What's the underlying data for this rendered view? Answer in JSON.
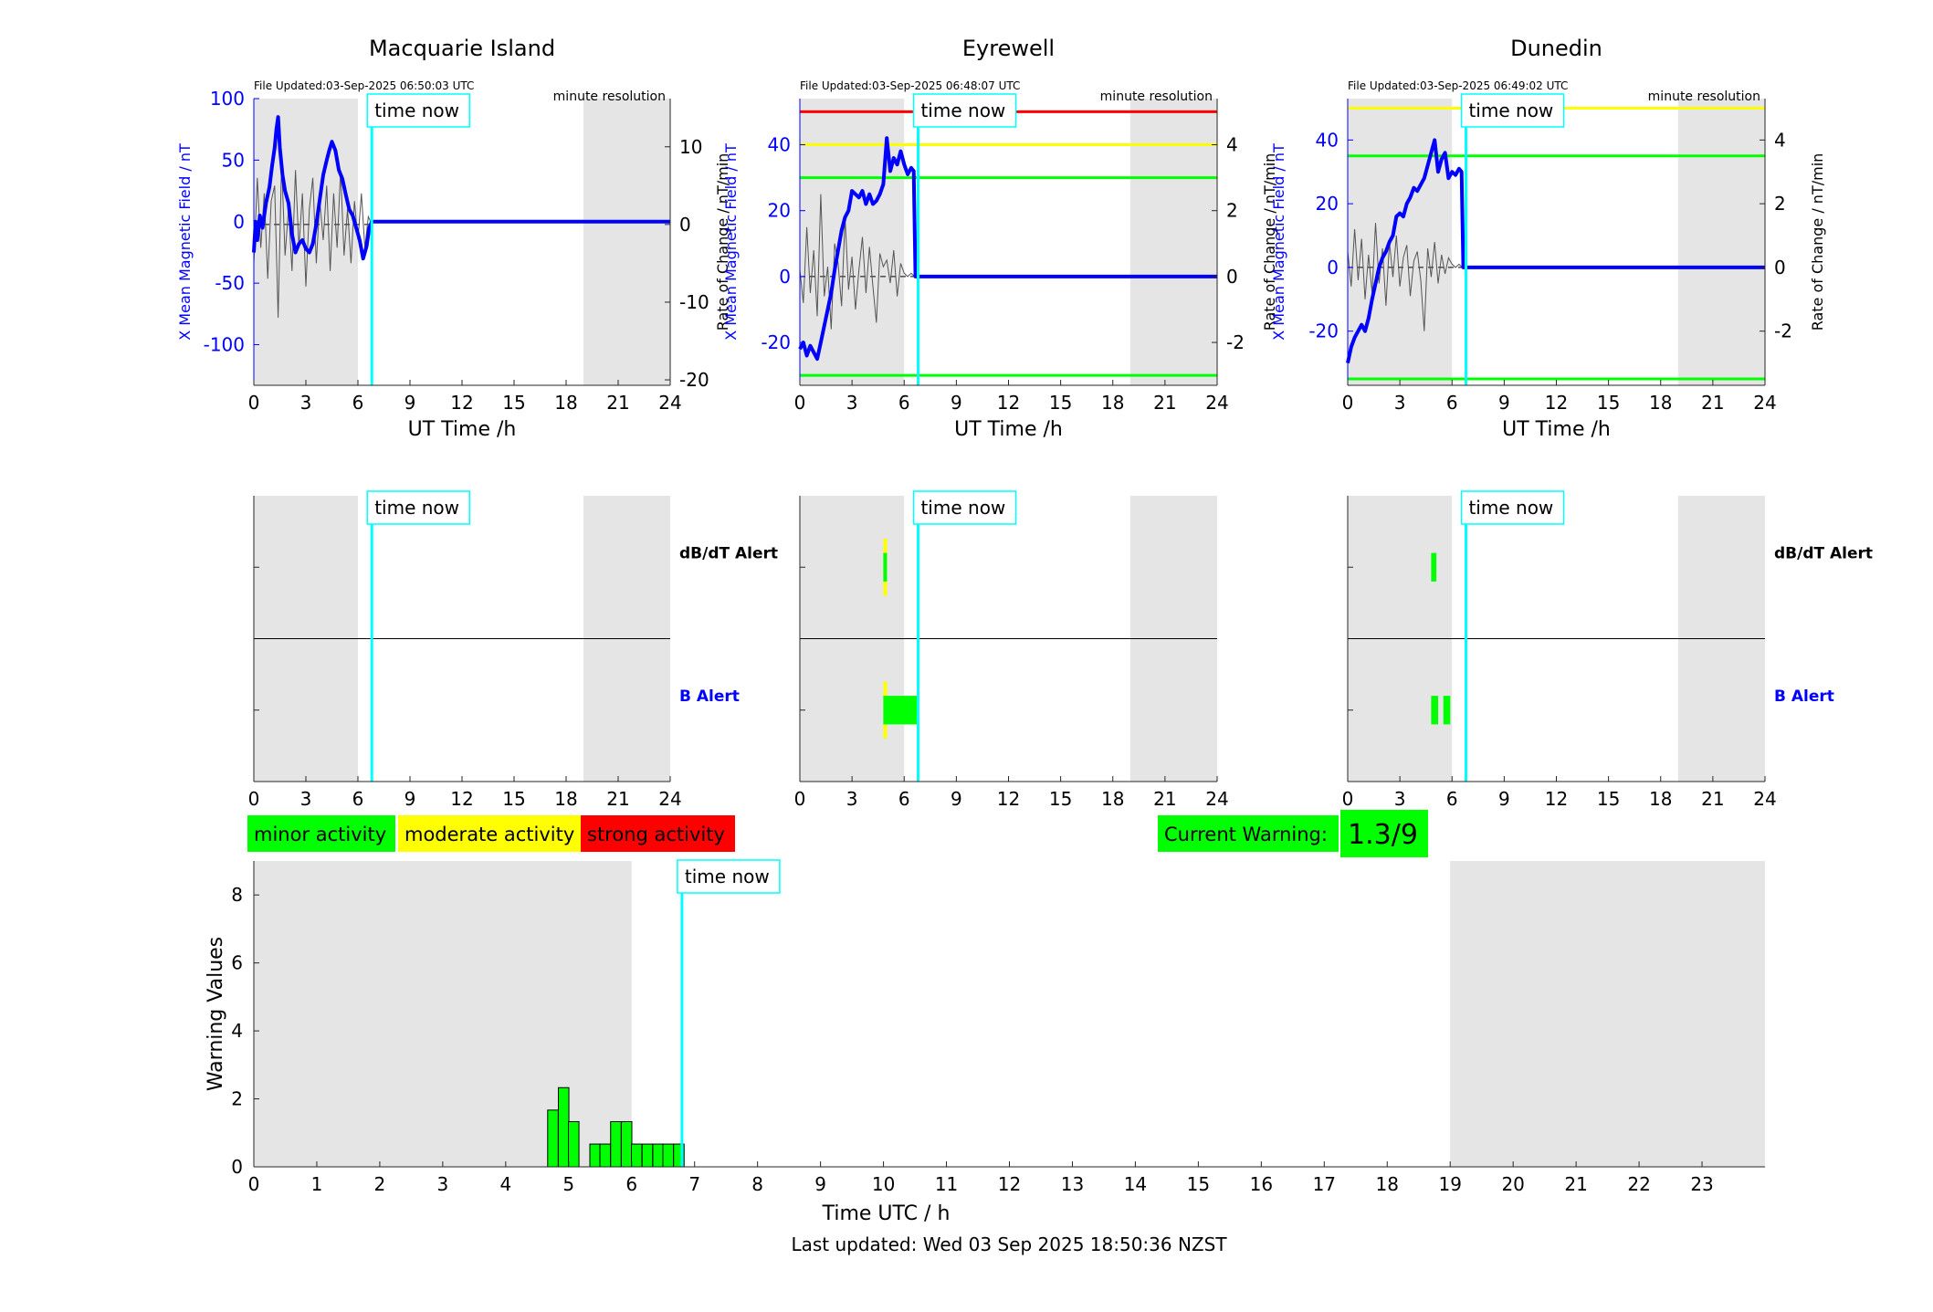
{
  "stations": [
    {
      "title": "Macquarie Island",
      "file_updated": "File Updated:03-Sep-2025 06:50:03 UTC",
      "resolution": "minute resolution",
      "left_axis": {
        "label": "X Mean Magnetic Field / nT",
        "ylim": [
          -133,
          100
        ],
        "ticks": [
          -100,
          -50,
          0,
          50,
          100
        ]
      },
      "right_axis": {
        "label": "Rate of Change / nT/min",
        "ylim": [
          -20.7,
          16.2
        ],
        "ticks": [
          -20,
          -10,
          0,
          10
        ]
      },
      "thresholds": []
    },
    {
      "title": "Eyrewell",
      "file_updated": "File Updated:03-Sep-2025 06:48:07 UTC",
      "resolution": "minute resolution",
      "left_axis": {
        "label": "X Mean Magnetic Field / nT",
        "ylim": [
          -33,
          54
        ],
        "ticks": [
          -20,
          0,
          20,
          40
        ]
      },
      "right_axis": {
        "label": "Rate of Change / nT/min",
        "ylim": [
          -3.3,
          5.4
        ],
        "ticks": [
          -2,
          0,
          2,
          4
        ]
      },
      "thresholds": [
        {
          "value": 50,
          "color": "#ff0000"
        },
        {
          "value": 40,
          "color": "#ffff00"
        },
        {
          "value": 30,
          "color": "#00ff00"
        },
        {
          "value": -30,
          "color": "#00ff00"
        }
      ]
    },
    {
      "title": "Dunedin",
      "file_updated": "File Updated:03-Sep-2025 06:49:02 UTC",
      "resolution": "minute resolution",
      "left_axis": {
        "label": "X Mean Magnetic Field / nT",
        "ylim": [
          -37,
          53
        ],
        "ticks": [
          -20,
          0,
          20,
          40
        ]
      },
      "right_axis": {
        "label": "Rate of Change / nT/min",
        "ylim": [
          -3.7,
          5.3
        ],
        "ticks": [
          -2,
          0,
          2,
          4
        ]
      },
      "thresholds": [
        {
          "value": 50,
          "color": "#ffff00"
        },
        {
          "value": 35,
          "color": "#00ff00"
        },
        {
          "value": -35,
          "color": "#00ff00"
        }
      ]
    }
  ],
  "top_xlabel": "UT Time /h",
  "hour_ticks": [
    0,
    3,
    6,
    9,
    12,
    15,
    18,
    21,
    24
  ],
  "night_bands": [
    [
      0,
      6
    ],
    [
      19,
      24
    ]
  ],
  "time_now_label": "time now",
  "time_now_h": 6.8,
  "alerts": {
    "db_dt_label": "dB/dT Alert",
    "b_label": "B Alert",
    "label_colors": {
      "db_dt": "#000000",
      "b": "#0000ff"
    },
    "bars": [
      [],
      [
        {
          "row": "dbdt",
          "start": 4.8,
          "end": 5.0,
          "color": "#ffff00",
          "height": 1.0
        },
        {
          "row": "dbdt",
          "start": 4.8,
          "end": 5.0,
          "color": "#00ff00",
          "height": 0.5
        },
        {
          "row": "b",
          "start": 4.8,
          "end": 5.0,
          "color": "#ffff00",
          "height": 1.0
        },
        {
          "row": "b",
          "start": 4.8,
          "end": 6.8,
          "color": "#00ff00",
          "height": 0.5
        }
      ],
      [
        {
          "row": "dbdt",
          "start": 4.8,
          "end": 5.1,
          "color": "#00ff00",
          "height": 0.5
        },
        {
          "row": "b",
          "start": 4.8,
          "end": 5.2,
          "color": "#00ff00",
          "height": 0.5
        },
        {
          "row": "b",
          "start": 5.5,
          "end": 5.9,
          "color": "#00ff00",
          "height": 0.5
        }
      ]
    ]
  },
  "legend": [
    {
      "label": "minor activity",
      "color": "#00ff00"
    },
    {
      "label": "moderate activity",
      "color": "#ffff00"
    },
    {
      "label": "strong activity",
      "color": "#ff0000"
    }
  ],
  "current_warning": {
    "label": "Current Warning:",
    "value": "1.3/9",
    "color": "#00ff00"
  },
  "warning_chart": {
    "xlabel": "Time UTC / h",
    "ylabel": "Warning Values",
    "xlim": [
      0,
      24
    ],
    "ylim": [
      0,
      9
    ],
    "x_ticks": [
      0,
      1,
      2,
      3,
      4,
      5,
      6,
      7,
      8,
      9,
      10,
      11,
      12,
      13,
      14,
      15,
      16,
      17,
      18,
      19,
      20,
      21,
      22,
      23
    ],
    "y_ticks": [
      0,
      2,
      4,
      6,
      8
    ],
    "night_bands": [
      [
        0,
        6
      ],
      [
        19,
        24
      ]
    ]
  },
  "last_updated": "Last updated: Wed 03 Sep 2025 18:50:36 NZST",
  "chart_data": [
    {
      "type": "line",
      "title": "Macquarie Island",
      "xlabel": "UT Time /h",
      "ylabel": "X Mean Magnetic Field / nT",
      "y2label": "Rate of Change / nT/min",
      "xlim": [
        0,
        24
      ],
      "ylim": [
        -133,
        100
      ],
      "y2lim": [
        -20.7,
        16.2
      ],
      "series": [
        {
          "axis": "left",
          "color": "#0000ff",
          "x": [
            0,
            0.1,
            0.2,
            0.35,
            0.5,
            0.7,
            0.9,
            1.05,
            1.2,
            1.3,
            1.4,
            1.5,
            1.65,
            1.8,
            2.0,
            2.2,
            2.4,
            2.6,
            2.8,
            3.0,
            3.2,
            3.4,
            3.6,
            3.8,
            4.0,
            4.2,
            4.35,
            4.5,
            4.7,
            4.9,
            5.1,
            5.3,
            5.5,
            5.7,
            5.9,
            6.1,
            6.3,
            6.5,
            6.65,
            6.8,
            24
          ],
          "y": [
            -25,
            0,
            -15,
            5,
            -5,
            15,
            28,
            45,
            60,
            75,
            85,
            60,
            38,
            25,
            15,
            -10,
            -25,
            -18,
            -15,
            -22,
            -25,
            -18,
            -2,
            18,
            38,
            50,
            58,
            65,
            58,
            42,
            35,
            22,
            10,
            5,
            -5,
            -15,
            -30,
            -20,
            -5,
            0,
            0
          ]
        },
        {
          "axis": "right",
          "color": "#000000",
          "x": [
            0,
            0.2,
            0.4,
            0.6,
            0.8,
            1.0,
            1.2,
            1.4,
            1.6,
            1.8,
            2.0,
            2.2,
            2.4,
            2.6,
            2.8,
            3.0,
            3.2,
            3.4,
            3.6,
            3.8,
            4.0,
            4.2,
            4.4,
            4.6,
            4.8,
            5.0,
            5.2,
            5.4,
            5.6,
            5.8,
            6.0,
            6.2,
            6.4,
            6.6,
            6.8
          ],
          "y": [
            -5,
            6,
            -3,
            4,
            -7,
            3,
            5,
            -12,
            8,
            -4,
            2,
            -6,
            7,
            -3,
            4,
            -8,
            2,
            6,
            -5,
            3,
            -2,
            5,
            -6,
            4,
            -3,
            7,
            -4,
            2,
            -5,
            3,
            -2,
            4,
            -3,
            1,
            0
          ]
        }
      ]
    },
    {
      "type": "line",
      "title": "Eyrewell",
      "xlabel": "UT Time /h",
      "ylabel": "X Mean Magnetic Field / nT",
      "y2label": "Rate of Change / nT/min",
      "xlim": [
        0,
        24
      ],
      "ylim": [
        -33,
        54
      ],
      "y2lim": [
        -3.3,
        5.4
      ],
      "series": [
        {
          "axis": "left",
          "color": "#0000ff",
          "x": [
            0,
            0.2,
            0.4,
            0.6,
            0.8,
            1.0,
            1.2,
            1.4,
            1.6,
            1.8,
            2.0,
            2.2,
            2.4,
            2.6,
            2.8,
            3.0,
            3.2,
            3.4,
            3.6,
            3.8,
            4.0,
            4.2,
            4.4,
            4.6,
            4.8,
            5.0,
            5.2,
            5.4,
            5.6,
            5.8,
            6.0,
            6.2,
            6.4,
            6.55,
            6.65,
            6.7,
            24
          ],
          "y": [
            -22,
            -20,
            -24,
            -21,
            -23,
            -25,
            -20,
            -15,
            -10,
            -5,
            2,
            8,
            14,
            18,
            20,
            26,
            25,
            24,
            26,
            22,
            25,
            22,
            23,
            25,
            28,
            42,
            32,
            36,
            34,
            38,
            34,
            31,
            33,
            32,
            0,
            0,
            0
          ]
        },
        {
          "axis": "right",
          "color": "#000000",
          "x": [
            0,
            0.2,
            0.4,
            0.6,
            0.8,
            1.0,
            1.2,
            1.4,
            1.6,
            1.8,
            2.0,
            2.2,
            2.4,
            2.6,
            2.8,
            3.0,
            3.2,
            3.4,
            3.6,
            3.8,
            4.0,
            4.2,
            4.4,
            4.6,
            4.8,
            5.0,
            5.2,
            5.4,
            5.6,
            5.8,
            6.0,
            6.2,
            6.4,
            6.6,
            6.8
          ],
          "y": [
            0.2,
            -0.8,
            1.5,
            -0.5,
            0.8,
            -1.2,
            2.5,
            -0.6,
            0.3,
            -1.6,
            1.0,
            0.4,
            -0.9,
            1.8,
            -0.4,
            0.6,
            -1.0,
            0.2,
            1.2,
            -0.5,
            0.9,
            -0.3,
            -1.4,
            0.7,
            0.3,
            0.5,
            -0.2,
            0.8,
            -0.6,
            0.4,
            0.1,
            0.0,
            0.1,
            0.0,
            0.0
          ]
        }
      ]
    },
    {
      "type": "line",
      "title": "Dunedin",
      "xlabel": "UT Time /h",
      "ylabel": "X Mean Magnetic Field / nT",
      "y2label": "Rate of Change / nT/min",
      "xlim": [
        0,
        24
      ],
      "ylim": [
        -37,
        53
      ],
      "y2lim": [
        -3.7,
        5.3
      ],
      "series": [
        {
          "axis": "left",
          "color": "#0000ff",
          "x": [
            0,
            0.2,
            0.4,
            0.6,
            0.8,
            1.0,
            1.2,
            1.4,
            1.6,
            1.8,
            2.0,
            2.2,
            2.4,
            2.6,
            2.8,
            3.0,
            3.2,
            3.4,
            3.6,
            3.8,
            4.0,
            4.2,
            4.4,
            4.6,
            4.8,
            5.0,
            5.2,
            5.4,
            5.6,
            5.8,
            6.0,
            6.2,
            6.4,
            6.55,
            6.65,
            6.7,
            24
          ],
          "y": [
            -30,
            -25,
            -22,
            -20,
            -18,
            -20,
            -16,
            -10,
            -5,
            0,
            3,
            5,
            8,
            10,
            16,
            17,
            16,
            20,
            22,
            25,
            24,
            26,
            28,
            32,
            36,
            40,
            30,
            34,
            36,
            28,
            30,
            29,
            31,
            30,
            0,
            0,
            0
          ]
        },
        {
          "axis": "right",
          "color": "#000000",
          "x": [
            0,
            0.2,
            0.4,
            0.6,
            0.8,
            1.0,
            1.2,
            1.4,
            1.6,
            1.8,
            2.0,
            2.2,
            2.4,
            2.6,
            2.8,
            3.0,
            3.2,
            3.4,
            3.6,
            3.8,
            4.0,
            4.2,
            4.4,
            4.6,
            4.8,
            5.0,
            5.2,
            5.4,
            5.6,
            5.8,
            6.0,
            6.2,
            6.4,
            6.6,
            6.8
          ],
          "y": [
            0.5,
            -0.6,
            1.2,
            -0.4,
            0.9,
            -1.0,
            0.4,
            -0.8,
            1.4,
            -0.5,
            0.6,
            -1.2,
            0.8,
            -0.3,
            1.0,
            -0.6,
            0.3,
            0.7,
            -0.9,
            0.2,
            0.5,
            -0.4,
            -2.0,
            0.6,
            -0.3,
            0.8,
            -0.5,
            0.4,
            -0.2,
            0.3,
            0.1,
            0.0,
            0.1,
            0.0,
            0.0
          ]
        }
      ]
    },
    {
      "type": "bar",
      "title": "",
      "xlabel": "Time UTC / h",
      "ylabel": "Warning Values",
      "xlim": [
        0,
        24
      ],
      "ylim": [
        0,
        9
      ],
      "bar_width": 0.167,
      "x": [
        4.75,
        4.92,
        5.08,
        5.42,
        5.58,
        5.75,
        5.92,
        6.08,
        6.25,
        6.42,
        6.58,
        6.75
      ],
      "values": [
        1.67,
        2.33,
        1.33,
        0.67,
        0.67,
        1.33,
        1.33,
        0.67,
        0.67,
        0.67,
        0.67,
        0.67
      ],
      "color": "#00ff00"
    }
  ]
}
